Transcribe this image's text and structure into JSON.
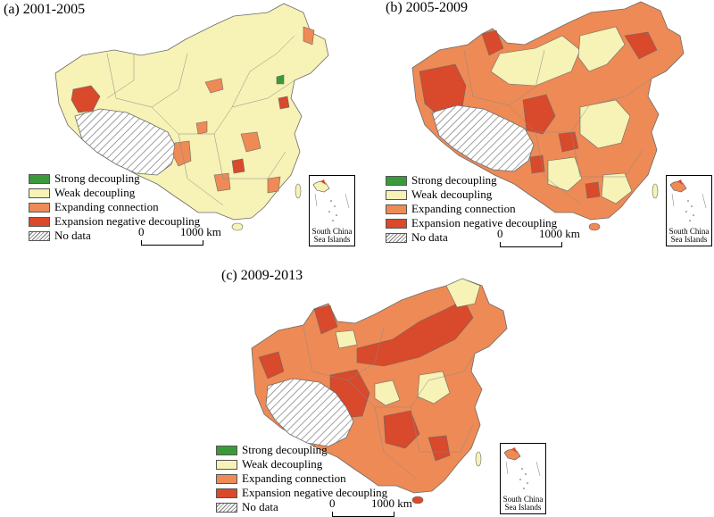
{
  "panels": [
    {
      "title": "(a) 2001-2005"
    },
    {
      "title": "(b) 2005-2009"
    },
    {
      "title": "(c) 2009-2013"
    }
  ],
  "legend": {
    "items": [
      {
        "label": "Strong decoupling",
        "color": "#3a9a3a"
      },
      {
        "label": "Weak decoupling",
        "color": "#f7f2b5"
      },
      {
        "label": "Expanding connection",
        "color": "#ee8a55"
      },
      {
        "label": "Expansion negative decoupling",
        "color": "#d9492b"
      },
      {
        "label": "No data",
        "color": "hatch"
      }
    ]
  },
  "scale_bar": {
    "zero": "0",
    "distance": "1000 km"
  },
  "inset_label": "South China Sea Islands",
  "inset_label_line1": "South China",
  "inset_label_line2": "Sea Islands",
  "colors": {
    "strong": "#3a9a3a",
    "weak": "#f7f2b5",
    "expanding": "#ee8a55",
    "negative": "#d9492b",
    "border": "#6b6b6b"
  }
}
